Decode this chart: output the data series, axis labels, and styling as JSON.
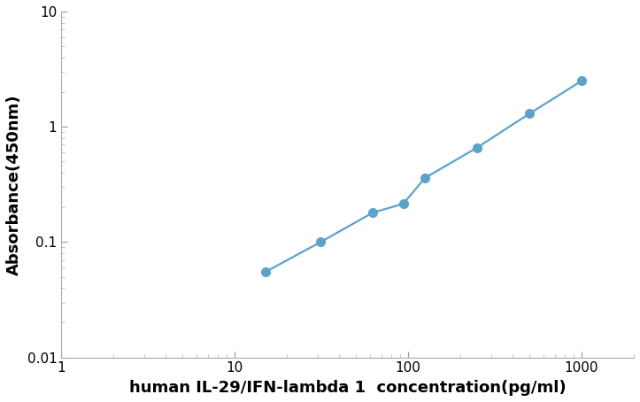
{
  "x": [
    15,
    31.25,
    62.5,
    93.75,
    125,
    250,
    500,
    1000
  ],
  "y": [
    0.055,
    0.1,
    0.18,
    0.215,
    0.36,
    0.66,
    1.3,
    2.5
  ],
  "line_color": "#5BA3CB",
  "marker_color": "#5BA3CB",
  "marker_size": 7,
  "line_width": 1.6,
  "xlabel": "human IL-29/IFN-lambda 1  concentration(pg/ml)",
  "ylabel": "Absorbance(450nm)",
  "xlim": [
    1,
    2000
  ],
  "ylim": [
    0.01,
    10
  ],
  "xlabel_fontsize": 13,
  "ylabel_fontsize": 13,
  "xlabel_color": "#000000",
  "ylabel_color": "#000000",
  "background_color": "#ffffff"
}
